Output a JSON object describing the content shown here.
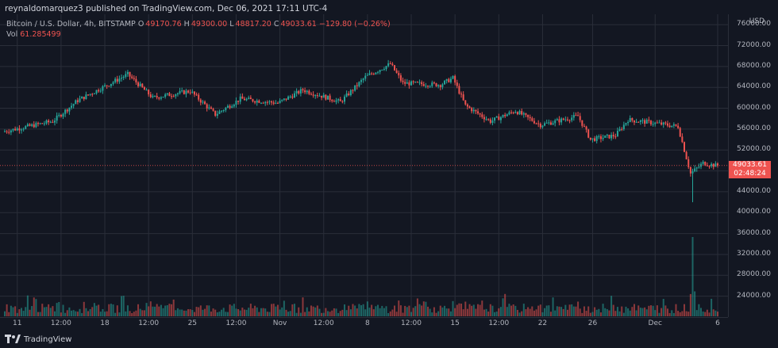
{
  "header": {
    "published_text": "reynaldomarquez3 published on TradingView.com, Dec 06, 2021 17:11 UTC-4"
  },
  "legend": {
    "symbol": "Bitcoin / U.S. Dollar, 4h, BITSTAMP",
    "open_label": "O",
    "open": "49170.76",
    "high_label": "H",
    "high": "49300.00",
    "low_label": "L",
    "low": "48817.20",
    "close_label": "C",
    "close": "49033.61",
    "change": "−129.80 (−0.26%)",
    "vol_label": "Vol",
    "vol": "61.285499"
  },
  "price_axis": {
    "currency": "USD",
    "ticks": [
      "76000.00",
      "72000.00",
      "68000.00",
      "64000.00",
      "60000.00",
      "56000.00",
      "52000.00",
      "48000.00",
      "44000.00",
      "40000.00",
      "36000.00",
      "32000.00",
      "28000.00",
      "24000.00"
    ],
    "last_price": "49033.61",
    "countdown": "02:48:24"
  },
  "time_axis": {
    "ticks": [
      "11",
      "12:00",
      "18",
      "12:00",
      "25",
      "12:00",
      "Nov",
      "12:00",
      "8",
      "12:00",
      "15",
      "12:00",
      "22",
      "26",
      "Dec",
      "6"
    ]
  },
  "footer": {
    "brand": "TradingView",
    "logo_icon": "tradingview-logo-icon"
  },
  "colors": {
    "background": "#131722",
    "up": "#26a69a",
    "down": "#ef5350",
    "grid": "#2a2e39"
  },
  "chart_data": {
    "type": "candlestick",
    "symbol": "BTCUSD",
    "interval": "4h",
    "x_range": [
      "2021-10-10",
      "2021-12-06"
    ],
    "ylim": [
      20000,
      78000
    ],
    "anchors": [
      {
        "date": "2021-10-10",
        "close": 55500
      },
      {
        "date": "2021-10-14",
        "close": 57500
      },
      {
        "date": "2021-10-16",
        "close": 61500
      },
      {
        "date": "2021-10-20",
        "close": 66500
      },
      {
        "date": "2021-10-22",
        "close": 62000
      },
      {
        "date": "2021-10-25",
        "close": 63300
      },
      {
        "date": "2021-10-27",
        "close": 58800
      },
      {
        "date": "2021-10-29",
        "close": 61800
      },
      {
        "date": "2021-11-01",
        "close": 61000
      },
      {
        "date": "2021-11-03",
        "close": 63500
      },
      {
        "date": "2021-11-06",
        "close": 61200
      },
      {
        "date": "2021-11-08",
        "close": 66000
      },
      {
        "date": "2021-11-10",
        "close": 68500
      },
      {
        "date": "2021-11-11",
        "close": 64800
      },
      {
        "date": "2021-11-14",
        "close": 64500
      },
      {
        "date": "2021-11-15",
        "close": 65800
      },
      {
        "date": "2021-11-16",
        "close": 60500
      },
      {
        "date": "2021-11-18",
        "close": 57500
      },
      {
        "date": "2021-11-20",
        "close": 59500
      },
      {
        "date": "2021-11-22",
        "close": 56800
      },
      {
        "date": "2021-11-25",
        "close": 58500
      },
      {
        "date": "2021-11-26",
        "close": 54000
      },
      {
        "date": "2021-11-28",
        "close": 54800
      },
      {
        "date": "2021-11-29",
        "close": 57800
      },
      {
        "date": "2021-12-01",
        "close": 57200
      },
      {
        "date": "2021-12-03",
        "close": 56500
      },
      {
        "date": "2021-12-04",
        "close": 47500
      },
      {
        "date": "2021-12-05",
        "close": 49500
      },
      {
        "date": "2021-12-06",
        "close": 49033.61
      }
    ],
    "notable_low": {
      "date": "2021-12-04",
      "low": 42000
    },
    "volume_peak": {
      "date": "2021-12-04"
    }
  }
}
